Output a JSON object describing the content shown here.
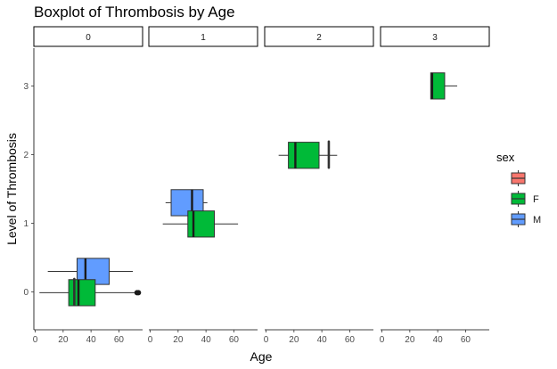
{
  "chart_data": {
    "type": "boxplot",
    "title": "Boxplot of Thrombosis by Age",
    "xlabel": "Age",
    "ylabel": "Level of Thrombosis",
    "facet_labels": [
      "0",
      "1",
      "2",
      "3"
    ],
    "xlim": [
      -1,
      77
    ],
    "x_ticks": [
      0,
      20,
      40,
      60
    ],
    "ylim": [
      -0.55,
      3.55
    ],
    "y_ticks": [
      0,
      1,
      2,
      3
    ],
    "grid": false,
    "legend": {
      "title": "sex",
      "position": "right",
      "entries": [
        {
          "label": "",
          "color": "#F8766D"
        },
        {
          "label": "F",
          "color": "#00BA38"
        },
        {
          "label": "M",
          "color": "#619CFF"
        }
      ]
    },
    "boxes": [
      {
        "facet": "0",
        "level": 0,
        "sex": "M",
        "whisker_low": 9,
        "q1": 30,
        "median": 36,
        "q3": 53,
        "whisker_high": 70,
        "outliers": []
      },
      {
        "facet": "0",
        "level": 0,
        "sex": "F",
        "whisker_low": 3,
        "q1": 24,
        "median": 31,
        "q3": 43,
        "whisker_high": 73,
        "outliers": [
          73,
          74
        ]
      },
      {
        "facet": "0",
        "level": 0,
        "sex": "",
        "whisker_low": 28,
        "q1": 28,
        "median": 28,
        "q3": 28,
        "whisker_high": 28,
        "outliers": [
          28
        ]
      },
      {
        "facet": "1",
        "level": 1,
        "sex": "M",
        "whisker_low": 11,
        "q1": 15,
        "median": 30,
        "q3": 38,
        "whisker_high": 41,
        "outliers": []
      },
      {
        "facet": "1",
        "level": 1,
        "sex": "F",
        "whisker_low": 9,
        "q1": 27,
        "median": 31,
        "q3": 46,
        "whisker_high": 63,
        "outliers": []
      },
      {
        "facet": "2",
        "level": 2,
        "sex": "F",
        "whisker_low": 9,
        "q1": 16,
        "median": 21,
        "q3": 38,
        "whisker_high": 51,
        "outliers": []
      },
      {
        "facet": "2",
        "level": 2,
        "sex": "",
        "whisker_low": 45,
        "q1": 45,
        "median": 45,
        "q3": 45,
        "whisker_high": 45,
        "outliers": [
          45
        ]
      },
      {
        "facet": "3",
        "level": 3,
        "sex": "F",
        "whisker_low": 35,
        "q1": 35,
        "median": 36,
        "q3": 45,
        "whisker_high": 54,
        "outliers": []
      }
    ]
  }
}
